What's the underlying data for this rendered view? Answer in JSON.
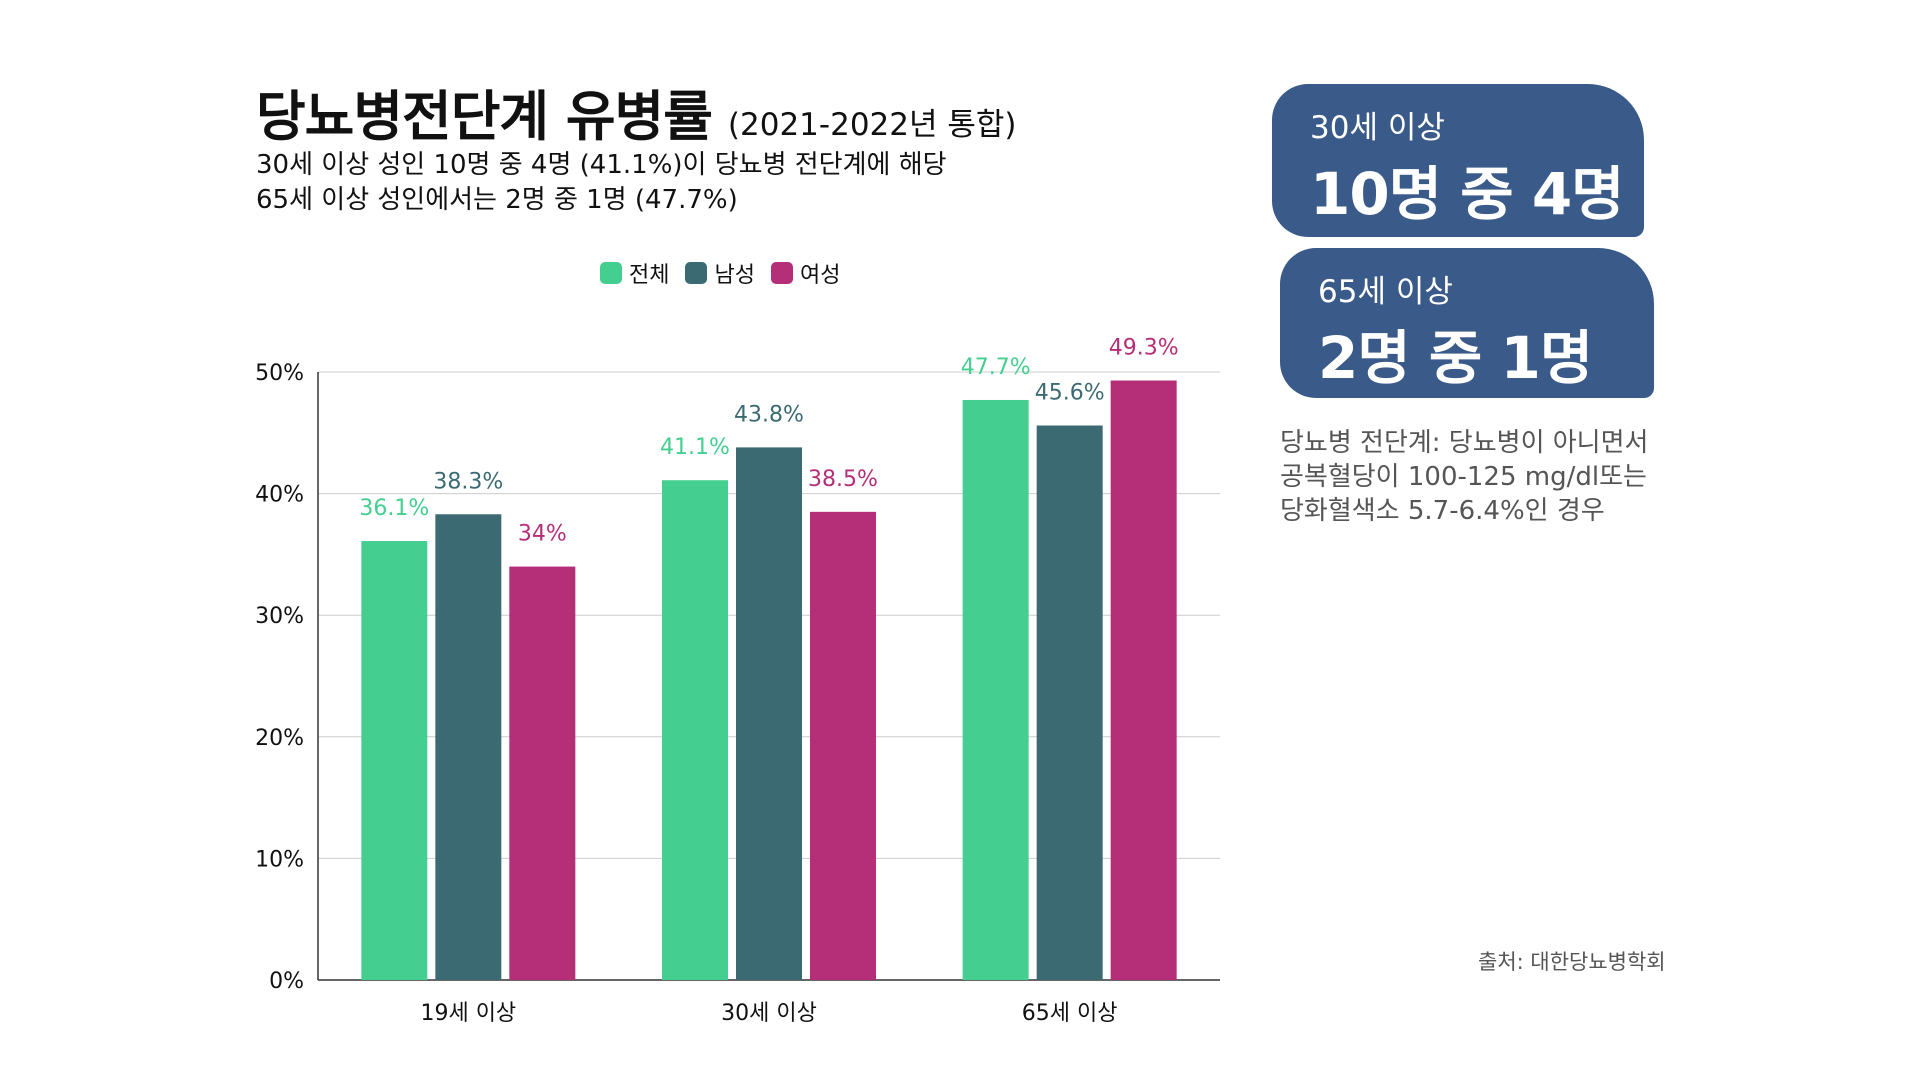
{
  "header": {
    "title": "당뇨병전단계 유병률",
    "title_suffix": "(2021-2022년 통합)",
    "subtitle_lines": [
      "30세 이상 성인 10명 중 4명 (41.1%)이 당뇨병 전단계에 해당",
      "65세 이상 성인에서는 2명 중 1명 (47.7%)"
    ]
  },
  "chart_data": {
    "type": "bar",
    "categories": [
      "19세 이상",
      "30세 이상",
      "65세 이상"
    ],
    "series": [
      {
        "name": "전체",
        "color": "#44cf91",
        "values": [
          36.1,
          41.1,
          47.7
        ],
        "labels": [
          "36.1%",
          "41.1%",
          "47.7%"
        ]
      },
      {
        "name": "남성",
        "color": "#3b6a72",
        "values": [
          38.3,
          43.8,
          45.6
        ],
        "labels": [
          "38.3%",
          "43.8%",
          "45.6%"
        ]
      },
      {
        "name": "여성",
        "color": "#b52f78",
        "values": [
          34,
          38.5,
          49.3
        ],
        "labels": [
          "34%",
          "38.5%",
          "49.3%"
        ]
      }
    ],
    "yticks": [
      "0%",
      "10%",
      "20%",
      "30%",
      "40%",
      "50%"
    ],
    "ylim": [
      0,
      50
    ],
    "grid": true,
    "legend": "top-center"
  },
  "cards": [
    {
      "label": "30세 이상",
      "value": "10명 중 4명"
    },
    {
      "label": "65세 이상",
      "value": "2명 중 1명"
    }
  ],
  "note_lines": [
    "당뇨병 전단계: 당뇨병이 아니면서",
    "공복혈당이 100-125 mg/dl또는",
    "당화혈색소 5.7-6.4%인 경우"
  ],
  "source": "출처: 대한당뇨병학회",
  "colors": {
    "card_bg": "#3a5a8a",
    "grid": "#cccccc",
    "axis": "#333333",
    "note": "#555555"
  }
}
